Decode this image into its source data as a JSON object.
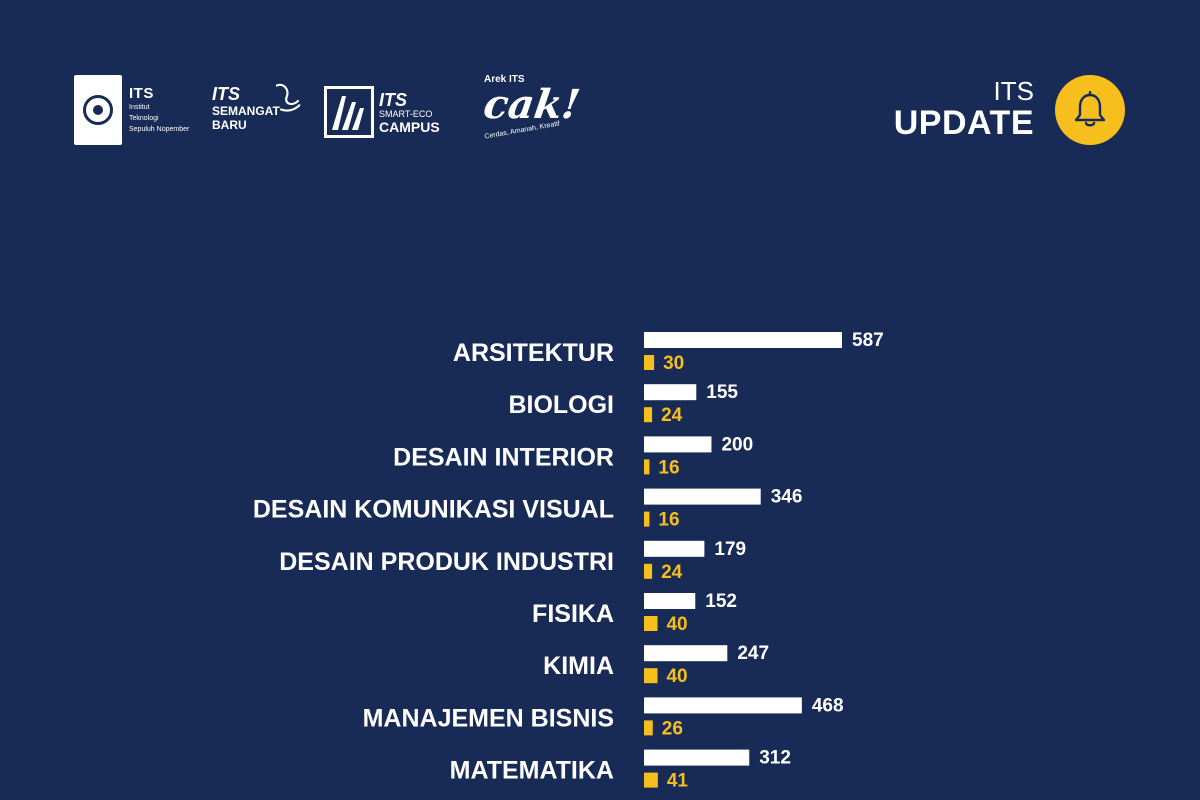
{
  "header": {
    "logos": {
      "its": {
        "name": "ITS",
        "subtitle_lines": [
          "Institut",
          "Teknologi",
          "Sepuluh Nopember"
        ]
      },
      "semangat": {
        "line1": "ITS",
        "line2": "SEMANGAT",
        "line3": "BARU"
      },
      "smart": {
        "line1": "ITS",
        "line2": "SMART-ECO",
        "line3": "CAMPUS"
      },
      "cak": {
        "small": "Arek ITS",
        "big": "cak!",
        "tagline": "Cerdas, Amanah, Kreatif"
      }
    },
    "update": {
      "small": "ITS",
      "big": "UPDATE",
      "icon": "bell-icon"
    }
  },
  "colors": {
    "background": "#182b57",
    "primary_bar": "#ffffff",
    "secondary_bar": "#f6bf1e",
    "accent": "#f6bf1e"
  },
  "chart_data": {
    "type": "bar",
    "orientation": "horizontal",
    "categories": [
      "ARSITEKTUR",
      "BIOLOGI",
      "DESAIN INTERIOR",
      "DESAIN KOMUNIKASI VISUAL",
      "DESAIN PRODUK INDUSTRI",
      "FISIKA",
      "KIMIA",
      "MANAJEMEN BISNIS",
      "MATEMATIKA"
    ],
    "series": [
      {
        "values": [
          587,
          155,
          200,
          346,
          179,
          152,
          247,
          468,
          312
        ],
        "color": "#ffffff"
      },
      {
        "values": [
          30,
          24,
          16,
          16,
          24,
          40,
          40,
          26,
          41
        ],
        "color": "#f6bf1e"
      }
    ],
    "title": "",
    "xlabel": "",
    "ylabel": "",
    "grid": false
  }
}
